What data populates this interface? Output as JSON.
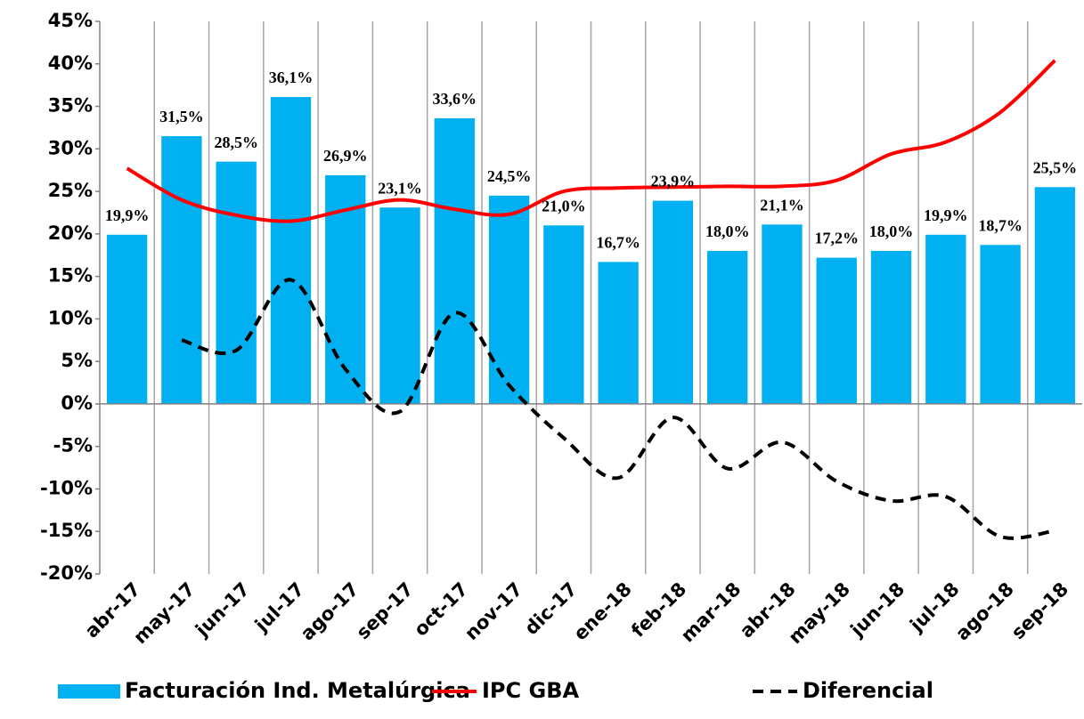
{
  "chart_data": {
    "type": "bar",
    "categories": [
      "abr-17",
      "may-17",
      "jun-17",
      "jul-17",
      "ago-17",
      "sep-17",
      "oct-17",
      "nov-17",
      "dic-17",
      "ene-18",
      "feb-18",
      "mar-18",
      "abr-18",
      "may-18",
      "jun-18",
      "jul-18",
      "ago-18",
      "sep-18"
    ],
    "series": [
      {
        "name": "Facturación Ind. Metalúrgica",
        "type": "bar",
        "color": "#00b0f0",
        "values": [
          19.9,
          31.5,
          28.5,
          36.1,
          26.9,
          23.1,
          33.6,
          24.5,
          21.0,
          16.7,
          23.9,
          18.0,
          21.1,
          17.2,
          18.0,
          19.9,
          18.7,
          25.5
        ],
        "value_labels": [
          "19,9%",
          "31,5%",
          "28,5%",
          "36,1%",
          "26,9%",
          "23,1%",
          "33,6%",
          "24,5%",
          "21,0%",
          "16,7%",
          "23,9%",
          "18,0%",
          "21,1%",
          "17,2%",
          "18,0%",
          "19,9%",
          "18,7%",
          "25,5%"
        ]
      },
      {
        "name": "IPC GBA",
        "type": "line",
        "color": "#ff0000",
        "values": [
          27.7,
          24.0,
          22.2,
          21.5,
          22.8,
          24.0,
          22.9,
          22.3,
          25.0,
          25.4,
          25.5,
          25.6,
          25.6,
          26.3,
          29.4,
          30.8,
          34.3,
          40.4
        ]
      },
      {
        "name": "Diferencial",
        "type": "line",
        "color": "#000000",
        "dashed": true,
        "values": [
          null,
          7.5,
          6.3,
          14.6,
          4.1,
          -0.9,
          10.7,
          2.2,
          -4.0,
          -8.7,
          -1.6,
          -7.6,
          -4.5,
          -9.1,
          -11.4,
          -10.9,
          -15.6,
          -14.9
        ]
      }
    ],
    "ylim": [
      -20,
      45
    ],
    "yticks": [
      {
        "value": -20,
        "label": "-20%"
      },
      {
        "value": -15,
        "label": "-15%"
      },
      {
        "value": -10,
        "label": "-10%"
      },
      {
        "value": -5,
        "label": "-5%"
      },
      {
        "value": 0,
        "label": "0%"
      },
      {
        "value": 5,
        "label": "5%"
      },
      {
        "value": 10,
        "label": "10%"
      },
      {
        "value": 15,
        "label": "15%"
      },
      {
        "value": 20,
        "label": "20%"
      },
      {
        "value": 25,
        "label": "25%"
      },
      {
        "value": 30,
        "label": "30%"
      },
      {
        "value": 35,
        "label": "35%"
      },
      {
        "value": 40,
        "label": "40%"
      },
      {
        "value": 45,
        "label": "45%"
      }
    ],
    "grid": "vertical",
    "legend": "bottom"
  }
}
